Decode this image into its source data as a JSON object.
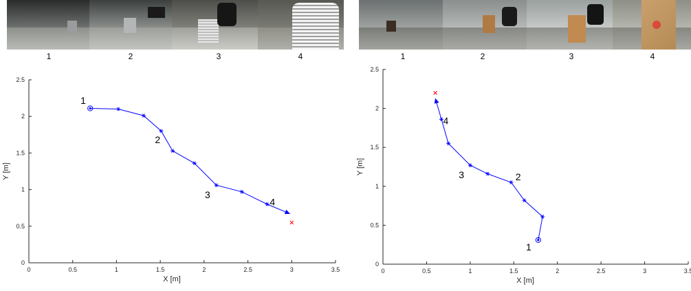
{
  "chart_data": [
    {
      "type": "line",
      "xlabel": "X [m]",
      "ylabel": "Y [m]",
      "xlim": [
        0,
        3.5
      ],
      "ylim": [
        0,
        2.5
      ],
      "xticks": [
        "0",
        "0.5",
        "1",
        "1.5",
        "2",
        "2.5",
        "3",
        "3.5"
      ],
      "yticks": [
        "0",
        "0.5",
        "1",
        "1.5",
        "2",
        "2.5"
      ],
      "grid": false,
      "series": [
        {
          "color": "#0000ff",
          "x": [
            0.7,
            1.02,
            1.31,
            1.51,
            1.64,
            1.89,
            2.14,
            2.43,
            2.72,
            2.98
          ],
          "y": [
            2.11,
            2.1,
            2.01,
            1.8,
            1.53,
            1.36,
            1.06,
            0.97,
            0.8,
            0.67
          ]
        }
      ],
      "start": {
        "x": 0.7,
        "y": 2.11
      },
      "target": {
        "x": 3.0,
        "y": 0.55,
        "color": "#ff0000"
      },
      "annotations": [
        {
          "text": "1",
          "x": 0.62,
          "y": 2.22
        },
        {
          "text": "2",
          "x": 1.47,
          "y": 1.68
        },
        {
          "text": "3",
          "x": 2.04,
          "y": 0.93
        },
        {
          "text": "4",
          "x": 2.78,
          "y": 0.83
        }
      ],
      "thumbnails": [
        "1",
        "2",
        "3",
        "4"
      ]
    },
    {
      "type": "line",
      "xlabel": "X [m]",
      "ylabel": "Y [m]",
      "xlim": [
        0,
        3.5
      ],
      "ylim": [
        0,
        2.5
      ],
      "xticks": [
        "0",
        "0.5",
        "1",
        "1.5",
        "2",
        "2.5",
        "3",
        "3.5"
      ],
      "yticks": [
        "0",
        "0.5",
        "1",
        "1.5",
        "2",
        "2.5"
      ],
      "grid": false,
      "series": [
        {
          "color": "#0000ff",
          "x": [
            1.78,
            1.83,
            1.62,
            1.47,
            1.2,
            1.0,
            0.75,
            0.67,
            0.6
          ],
          "y": [
            0.31,
            0.61,
            0.82,
            1.05,
            1.16,
            1.27,
            1.55,
            1.86,
            2.13
          ]
        }
      ],
      "start": {
        "x": 1.78,
        "y": 0.31
      },
      "target": {
        "x": 0.6,
        "y": 2.2,
        "color": "#ff0000"
      },
      "annotations": [
        {
          "text": "1",
          "x": 1.67,
          "y": 0.22
        },
        {
          "text": "2",
          "x": 1.55,
          "y": 1.12
        },
        {
          "text": "3",
          "x": 0.9,
          "y": 1.15
        },
        {
          "text": "4",
          "x": 0.72,
          "y": 1.84
        }
      ],
      "thumbnails": [
        "1",
        "2",
        "3",
        "4"
      ]
    }
  ]
}
